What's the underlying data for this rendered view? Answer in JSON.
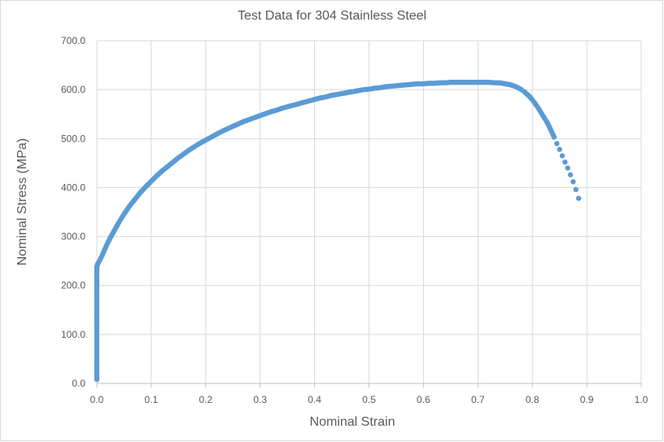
{
  "chart_data": {
    "type": "scatter",
    "title": "Test Data for 304 Stainless Steel",
    "xlabel": "Nominal Strain",
    "ylabel": "Nominal Stress (MPa)",
    "xlim": [
      0,
      1.0
    ],
    "ylim": [
      0,
      700
    ],
    "xticks": [
      "0.0",
      "0.1",
      "0.2",
      "0.3",
      "0.4",
      "0.5",
      "0.6",
      "0.7",
      "0.8",
      "0.9",
      "1.0"
    ],
    "yticks": [
      "0.0",
      "100.0",
      "200.0",
      "300.0",
      "400.0",
      "500.0",
      "600.0",
      "700.0"
    ],
    "grid": true,
    "marker_color": "#5B9BD5",
    "series": [
      {
        "x": [
          0.0,
          0.0,
          0.0,
          0.0,
          0.0,
          0.0,
          0.0,
          0.0,
          0.0,
          0.0,
          0.0,
          0.0,
          0.0,
          0.0,
          0.0,
          0.0,
          0.0,
          0.0,
          0.0,
          0.0,
          0.0,
          0.0,
          0.0,
          0.0,
          0.001,
          0.002,
          0.004,
          0.006,
          0.01,
          0.015,
          0.02,
          0.025,
          0.03,
          0.035,
          0.04,
          0.045,
          0.05,
          0.055,
          0.06,
          0.065,
          0.07,
          0.075,
          0.08,
          0.09,
          0.1,
          0.11,
          0.12,
          0.13,
          0.14,
          0.15,
          0.16,
          0.17,
          0.18,
          0.19,
          0.2,
          0.21,
          0.22,
          0.23,
          0.24,
          0.25,
          0.26,
          0.27,
          0.28,
          0.29,
          0.3,
          0.31,
          0.32,
          0.33,
          0.34,
          0.35,
          0.36,
          0.37,
          0.38,
          0.39,
          0.4,
          0.41,
          0.42,
          0.43,
          0.44,
          0.45,
          0.46,
          0.47,
          0.48,
          0.49,
          0.5,
          0.51,
          0.52,
          0.53,
          0.54,
          0.55,
          0.56,
          0.57,
          0.58,
          0.59,
          0.6,
          0.61,
          0.62,
          0.63,
          0.64,
          0.65,
          0.66,
          0.67,
          0.68,
          0.69,
          0.7,
          0.71,
          0.72,
          0.73,
          0.74,
          0.75,
          0.76,
          0.77,
          0.78,
          0.785,
          0.79,
          0.795,
          0.8,
          0.805,
          0.81,
          0.815,
          0.82,
          0.825,
          0.83,
          0.835,
          0.84,
          0.845,
          0.85,
          0.855,
          0.86,
          0.865,
          0.87,
          0.875,
          0.88,
          0.885
        ],
        "y": [
          8,
          18,
          28,
          38,
          50,
          60,
          70,
          80,
          90,
          100,
          110,
          120,
          130,
          140,
          150,
          160,
          170,
          180,
          190,
          200,
          210,
          220,
          230,
          238,
          242,
          245,
          249,
          253,
          262,
          275,
          287,
          298,
          308,
          318,
          328,
          337,
          346,
          354,
          362,
          369,
          376,
          383,
          390,
          402,
          413,
          424,
          434,
          443,
          452,
          461,
          469,
          477,
          484,
          491,
          497,
          503,
          509,
          515,
          520,
          525,
          530,
          535,
          539,
          543,
          547,
          551,
          555,
          558,
          562,
          565,
          568,
          571,
          574,
          577,
          580,
          583,
          585,
          588,
          590,
          592,
          594,
          596,
          598,
          600,
          601,
          603,
          604,
          606,
          607,
          608,
          609,
          610,
          611,
          612,
          612,
          613,
          613,
          614,
          614,
          615,
          615,
          615,
          615,
          615,
          615,
          615,
          615,
          614,
          614,
          612,
          610,
          606,
          600,
          596,
          591,
          586,
          579,
          572,
          564,
          555,
          546,
          537,
          527,
          515,
          503,
          490,
          478,
          465,
          452,
          440,
          426,
          412,
          396,
          378
        ]
      }
    ]
  }
}
